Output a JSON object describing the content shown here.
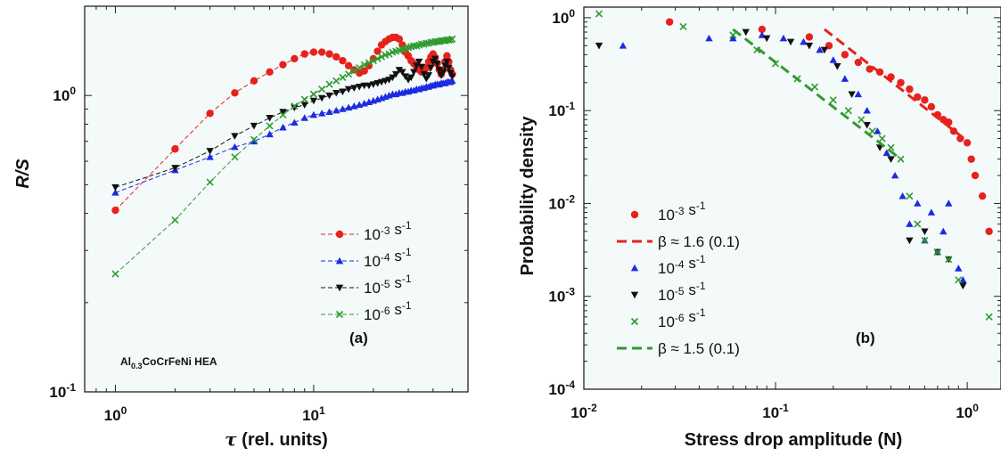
{
  "chart_data": [
    {
      "type": "line",
      "panel": "(a)",
      "xlabel_symbol": "τ",
      "xlabel": "(rel. units)",
      "ylabel": "R/S",
      "xscale": "log",
      "yscale": "log",
      "xlim": [
        0.7,
        60
      ],
      "ylim": [
        0.1,
        2
      ],
      "xticks": [
        {
          "v": 1,
          "b": "10",
          "e": "0"
        },
        {
          "v": 10,
          "b": "10",
          "e": "1"
        }
      ],
      "yticks": [
        {
          "v": 0.1,
          "b": "10",
          "e": "-1"
        },
        {
          "v": 1,
          "b": "10",
          "e": "0"
        }
      ],
      "annotation": {
        "a": "Al",
        "sub": "0.3",
        "b": "CoCrFeNi HEA"
      },
      "legend_position": "center-right",
      "series": [
        {
          "name": {
            "b": "10",
            "e": "-3",
            "u": " s",
            "ue": "-1"
          },
          "color": "#e8211c",
          "marker": "circle",
          "x": [
            1,
            2,
            3,
            4,
            5,
            6,
            7,
            8,
            9,
            10,
            11,
            12,
            13,
            14,
            15,
            16,
            17,
            18,
            19,
            20,
            21,
            22,
            23,
            24,
            25,
            26,
            27,
            28,
            29,
            30,
            31,
            32,
            33,
            34,
            35,
            36,
            37,
            38,
            39,
            40,
            41,
            42,
            43,
            44,
            45,
            46,
            47,
            48,
            49,
            50
          ],
          "y": [
            0.41,
            0.66,
            0.87,
            1.02,
            1.12,
            1.2,
            1.27,
            1.33,
            1.38,
            1.4,
            1.4,
            1.38,
            1.35,
            1.31,
            1.26,
            1.22,
            1.19,
            1.21,
            1.26,
            1.33,
            1.41,
            1.48,
            1.52,
            1.55,
            1.57,
            1.57,
            1.55,
            1.48,
            1.4,
            1.36,
            1.31,
            1.28,
            1.25,
            1.22,
            1.2,
            1.21,
            1.24,
            1.3,
            1.35,
            1.38,
            1.34,
            1.28,
            1.22,
            1.18,
            1.22,
            1.3,
            1.36,
            1.3,
            1.22,
            1.18
          ]
        },
        {
          "name": {
            "b": "10",
            "e": "-4",
            "u": " s",
            "ue": "-1"
          },
          "color": "#1c2be0",
          "marker": "triangle-up",
          "x": [
            1,
            2,
            3,
            4,
            5,
            6,
            7,
            8,
            9,
            10,
            11,
            12,
            13,
            14,
            15,
            16,
            17,
            18,
            19,
            20,
            21,
            22,
            23,
            24,
            25,
            26,
            27,
            28,
            29,
            30,
            31,
            32,
            33,
            34,
            35,
            36,
            37,
            38,
            39,
            40,
            41,
            42,
            43,
            44,
            45,
            46,
            47,
            48,
            49,
            50
          ],
          "y": [
            0.47,
            0.56,
            0.62,
            0.67,
            0.7,
            0.74,
            0.78,
            0.81,
            0.84,
            0.86,
            0.87,
            0.88,
            0.89,
            0.9,
            0.91,
            0.92,
            0.93,
            0.94,
            0.95,
            0.96,
            0.97,
            0.98,
            0.99,
            1.0,
            1.01,
            1.01,
            1.02,
            1.02,
            1.03,
            1.03,
            1.04,
            1.04,
            1.05,
            1.05,
            1.06,
            1.06,
            1.07,
            1.07,
            1.08,
            1.08,
            1.09,
            1.09,
            1.09,
            1.1,
            1.1,
            1.1,
            1.11,
            1.11,
            1.11,
            1.12
          ]
        },
        {
          "name": {
            "b": "10",
            "e": "-5",
            "u": " s",
            "ue": "-1"
          },
          "color": "#111111",
          "marker": "triangle-down",
          "x": [
            1,
            2,
            3,
            4,
            5,
            6,
            7,
            8,
            9,
            10,
            11,
            12,
            13,
            14,
            15,
            16,
            17,
            18,
            19,
            20,
            21,
            22,
            23,
            24,
            25,
            26,
            27,
            28,
            29,
            30,
            31,
            32,
            33,
            34,
            35,
            36,
            37,
            38,
            39,
            40,
            41,
            42,
            43,
            44,
            45,
            46,
            47,
            48,
            49,
            50
          ],
          "y": [
            0.49,
            0.57,
            0.65,
            0.73,
            0.79,
            0.84,
            0.88,
            0.91,
            0.93,
            0.96,
            0.98,
            1.0,
            1.02,
            1.03,
            1.05,
            1.06,
            1.07,
            1.08,
            1.08,
            1.09,
            1.1,
            1.11,
            1.12,
            1.13,
            1.15,
            1.18,
            1.22,
            1.2,
            1.16,
            1.13,
            1.15,
            1.2,
            1.26,
            1.3,
            1.25,
            1.18,
            1.14,
            1.17,
            1.24,
            1.3,
            1.33,
            1.28,
            1.22,
            1.17,
            1.2,
            1.26,
            1.3,
            1.24,
            1.19,
            1.16
          ]
        },
        {
          "name": {
            "b": "10",
            "e": "-6",
            "u": " s",
            "ue": "-1"
          },
          "color": "#2f9b2f",
          "marker": "x",
          "x": [
            1,
            2,
            3,
            4,
            5,
            6,
            7,
            8,
            9,
            10,
            11,
            12,
            13,
            14,
            15,
            16,
            17,
            18,
            19,
            20,
            21,
            22,
            23,
            24,
            25,
            26,
            27,
            28,
            29,
            30,
            31,
            32,
            33,
            34,
            35,
            36,
            37,
            38,
            39,
            40,
            41,
            42,
            43,
            44,
            45,
            46,
            47,
            48,
            49,
            50
          ],
          "y": [
            0.25,
            0.38,
            0.51,
            0.62,
            0.71,
            0.79,
            0.86,
            0.92,
            0.97,
            1.01,
            1.05,
            1.09,
            1.12,
            1.15,
            1.18,
            1.21,
            1.24,
            1.27,
            1.29,
            1.31,
            1.33,
            1.35,
            1.37,
            1.38,
            1.4,
            1.41,
            1.42,
            1.43,
            1.44,
            1.45,
            1.46,
            1.47,
            1.47,
            1.48,
            1.49,
            1.49,
            1.5,
            1.5,
            1.51,
            1.51,
            1.52,
            1.52,
            1.52,
            1.53,
            1.53,
            1.53,
            1.54,
            1.54,
            1.54,
            1.55
          ]
        }
      ]
    },
    {
      "type": "scatter",
      "panel": "(b)",
      "xlabel": "Stress drop amplitude (N)",
      "ylabel": "Probability density",
      "xscale": "log",
      "yscale": "log",
      "xlim": [
        0.01,
        1.5
      ],
      "ylim": [
        0.0001,
        1.3
      ],
      "xticks": [
        {
          "v": 0.01,
          "b": "10",
          "e": "-2"
        },
        {
          "v": 0.1,
          "b": "10",
          "e": "-1"
        },
        {
          "v": 1,
          "b": "10",
          "e": "0"
        }
      ],
      "yticks": [
        {
          "v": 0.0001,
          "b": "10",
          "e": "-4"
        },
        {
          "v": 0.001,
          "b": "10",
          "e": "-3"
        },
        {
          "v": 0.01,
          "b": "10",
          "e": "-2"
        },
        {
          "v": 0.1,
          "b": "10",
          "e": "-1"
        },
        {
          "v": 1,
          "b": "10",
          "e": "0"
        }
      ],
      "legend_position": "bottom-left",
      "series": [
        {
          "name": {
            "b": "10",
            "e": "-3",
            "u": " s",
            "ue": "-1"
          },
          "color": "#e8211c",
          "marker": "circle",
          "x": [
            0.028,
            0.085,
            0.15,
            0.19,
            0.23,
            0.27,
            0.31,
            0.35,
            0.4,
            0.45,
            0.5,
            0.55,
            0.6,
            0.65,
            0.7,
            0.75,
            0.8,
            0.85,
            0.92,
            1.0,
            1.05,
            1.1,
            1.2,
            1.3
          ],
          "y": [
            0.9,
            0.75,
            0.62,
            0.5,
            0.4,
            0.33,
            0.28,
            0.26,
            0.23,
            0.2,
            0.17,
            0.14,
            0.13,
            0.11,
            0.09,
            0.08,
            0.075,
            0.06,
            0.05,
            0.045,
            0.03,
            0.02,
            0.012,
            0.005
          ]
        },
        {
          "name": {
            "b": "β ≈ 1.6 (0.1)"
          },
          "color": "#e8211c",
          "marker": "dash-line",
          "x": [
            0.18,
            1.0
          ],
          "y": [
            0.75,
            0.047
          ]
        },
        {
          "name": {
            "b": "10",
            "e": "-4",
            "u": " s",
            "ue": "-1"
          },
          "color": "#1c2be0",
          "marker": "triangle-up",
          "x": [
            0.016,
            0.045,
            0.06,
            0.085,
            0.11,
            0.14,
            0.17,
            0.2,
            0.23,
            0.27,
            0.3,
            0.34,
            0.38,
            0.42,
            0.46,
            0.5,
            0.55,
            0.6,
            0.65,
            0.7,
            0.75,
            0.8,
            0.9,
            0.95
          ],
          "y": [
            0.5,
            0.6,
            0.6,
            0.65,
            0.6,
            0.55,
            0.45,
            0.35,
            0.22,
            0.15,
            0.1,
            0.06,
            0.035,
            0.02,
            0.012,
            0.006,
            0.01,
            0.004,
            0.008,
            0.003,
            0.005,
            0.01,
            0.002,
            0.0015
          ]
        },
        {
          "name": {
            "b": "10",
            "e": "-5",
            "u": " s",
            "ue": "-1"
          },
          "color": "#111111",
          "marker": "triangle-down",
          "x": [
            0.012,
            0.07,
            0.09,
            0.12,
            0.15,
            0.18,
            0.21,
            0.25,
            0.3,
            0.35,
            0.4,
            0.5,
            0.6,
            0.7,
            0.8,
            0.95
          ],
          "y": [
            0.5,
            0.7,
            0.6,
            0.55,
            0.5,
            0.45,
            0.3,
            0.15,
            0.07,
            0.04,
            0.03,
            0.004,
            0.005,
            0.003,
            0.0025,
            0.0013
          ]
        },
        {
          "name": {
            "b": "10",
            "e": "-6",
            "u": " s",
            "ue": "-1"
          },
          "color": "#2f9b2f",
          "marker": "x",
          "x": [
            0.012,
            0.033,
            0.06,
            0.08,
            0.1,
            0.13,
            0.16,
            0.2,
            0.24,
            0.28,
            0.32,
            0.36,
            0.4,
            0.45,
            0.5,
            0.55,
            0.6,
            0.7,
            0.8,
            0.9,
            1.3
          ],
          "y": [
            1.1,
            0.8,
            0.65,
            0.45,
            0.32,
            0.22,
            0.18,
            0.13,
            0.1,
            0.08,
            0.06,
            0.05,
            0.04,
            0.03,
            0.012,
            0.006,
            0.004,
            0.003,
            0.0025,
            0.0015,
            0.0006
          ]
        },
        {
          "name": {
            "b": "β ≈ 1.5 (0.1)"
          },
          "color": "#2f9b2f",
          "marker": "dash-line",
          "x": [
            0.06,
            0.45
          ],
          "y": [
            0.75,
            0.03
          ]
        }
      ]
    }
  ]
}
